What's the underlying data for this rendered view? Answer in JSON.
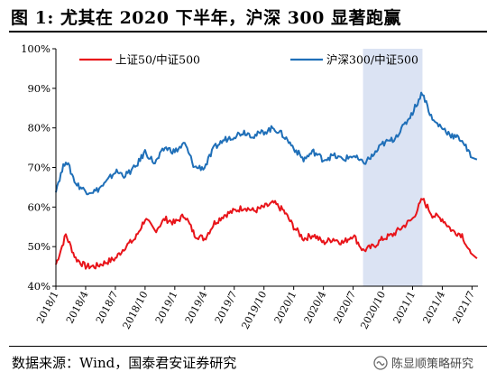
{
  "header": {
    "title": "图 1:  尤其在 2020 下半年，沪深 300 显著跑赢"
  },
  "footer": {
    "source": "数据来源：Wind，国泰君安证券研究",
    "watermark": "陈显顺策略研究"
  },
  "colors": {
    "series1": "#e8141a",
    "series2": "#1f6fb8",
    "highlight": "#dbe3f3"
  },
  "chart_data": {
    "type": "line",
    "title": "",
    "xlabel": "",
    "ylabel": "",
    "ylim": [
      40,
      100
    ],
    "yticks": [
      "40%",
      "50%",
      "60%",
      "70%",
      "80%",
      "90%",
      "100%"
    ],
    "xticks": [
      "2018/1",
      "2018/4",
      "2018/7",
      "2018/10",
      "2019/1",
      "2019/4",
      "2019/7",
      "2019/10",
      "2020/1",
      "2020/4",
      "2020/7",
      "2020/10",
      "2021/1",
      "2021/4",
      "2021/7"
    ],
    "legend_position": "top",
    "highlight_range": [
      "2020/8",
      "2021/2"
    ],
    "series": [
      {
        "name": "上证50/中证500",
        "x": [
          "2018/1",
          "2018/2",
          "2018/3",
          "2018/4",
          "2018/5",
          "2018/6",
          "2018/7",
          "2018/8",
          "2018/9",
          "2018/10",
          "2018/11",
          "2018/12",
          "2019/1",
          "2019/2",
          "2019/3",
          "2019/4",
          "2019/5",
          "2019/6",
          "2019/7",
          "2019/8",
          "2019/9",
          "2019/10",
          "2019/11",
          "2019/12",
          "2020/1",
          "2020/2",
          "2020/3",
          "2020/4",
          "2020/5",
          "2020/6",
          "2020/7",
          "2020/8",
          "2020/9",
          "2020/10",
          "2020/11",
          "2020/12",
          "2021/1",
          "2021/2",
          "2021/3",
          "2021/4",
          "2021/5",
          "2021/6",
          "2021/7"
        ],
        "values": [
          45.5,
          53,
          47,
          45,
          45,
          46,
          47,
          50,
          52,
          57,
          54,
          57,
          56,
          58,
          53,
          52,
          56,
          58,
          59,
          60,
          59,
          60,
          61,
          59,
          55,
          52,
          53,
          51,
          52,
          51,
          53,
          49,
          50,
          52,
          53,
          55,
          57,
          62,
          58,
          57,
          54,
          53,
          47
        ]
      },
      {
        "name": "沪深300/中证500",
        "x": [
          "2018/1",
          "2018/2",
          "2018/3",
          "2018/4",
          "2018/5",
          "2018/6",
          "2018/7",
          "2018/8",
          "2018/9",
          "2018/10",
          "2018/11",
          "2018/12",
          "2019/1",
          "2019/2",
          "2019/3",
          "2019/4",
          "2019/5",
          "2019/6",
          "2019/7",
          "2019/8",
          "2019/9",
          "2019/10",
          "2019/11",
          "2019/12",
          "2020/1",
          "2020/2",
          "2020/3",
          "2020/4",
          "2020/5",
          "2020/6",
          "2020/7",
          "2020/8",
          "2020/9",
          "2020/10",
          "2020/11",
          "2020/12",
          "2021/1",
          "2021/2",
          "2021/3",
          "2021/4",
          "2021/5",
          "2021/6",
          "2021/7"
        ],
        "values": [
          64.5,
          72,
          66,
          64,
          64,
          66,
          69,
          68,
          70,
          74,
          71,
          75,
          74,
          76,
          70,
          70,
          75,
          77,
          78,
          79,
          78,
          79,
          80,
          78,
          75,
          72,
          74,
          72,
          73,
          72,
          73,
          71,
          73,
          76,
          77,
          80,
          84,
          89,
          82,
          80,
          78,
          77,
          72
        ]
      }
    ]
  }
}
